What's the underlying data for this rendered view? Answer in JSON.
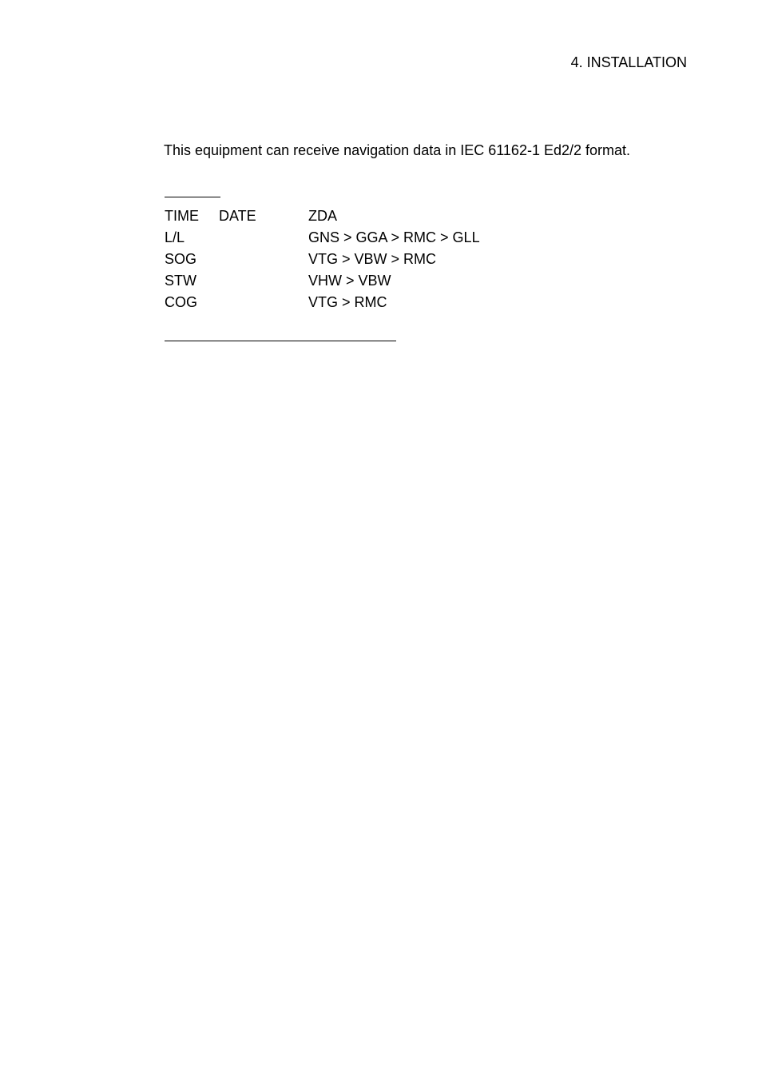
{
  "header": "4. INSTALLATION",
  "intro": "This equipment can receive navigation data in IEC 61162-1 Ed2/2 format.",
  "rows": [
    {
      "c1": "TIME",
      "c2": "DATE",
      "c3": "ZDA"
    },
    {
      "c1": "L/L",
      "c2": "",
      "c3": "GNS > GGA > RMC > GLL"
    },
    {
      "c1": "SOG",
      "c2": "",
      "c3": "VTG > VBW > RMC"
    },
    {
      "c1": "STW",
      "c2": "",
      "c3": "VHW > VBW"
    },
    {
      "c1": "COG",
      "c2": "",
      "c3": "VTG > RMC"
    }
  ],
  "colors": {
    "background": "#ffffff",
    "text": "#000000",
    "rule": "#000000"
  },
  "typography": {
    "fontFamily": "Arial",
    "fontSize": 18
  }
}
